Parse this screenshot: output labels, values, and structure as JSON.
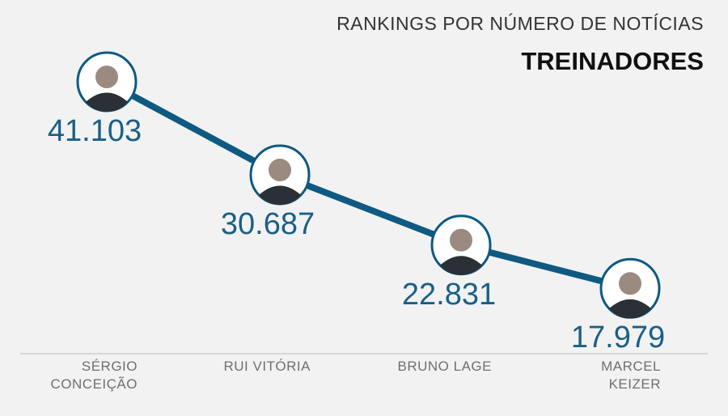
{
  "chart_data": {
    "type": "line",
    "title": "RANKINGS POR NÚMERO DE NOTÍCIAS",
    "subtitle": "TREINADORES",
    "categories": [
      "SÉRGIO\nCONCEIÇÃO",
      "RUI VITÓRIA",
      "BRUNO LAGE",
      "MARCEL\nKEIZER"
    ],
    "values": [
      41103,
      30687,
      22831,
      17979
    ],
    "value_labels": [
      "41.103",
      "30.687",
      "22.831",
      "17.979"
    ],
    "color": "#0e5a82"
  }
}
